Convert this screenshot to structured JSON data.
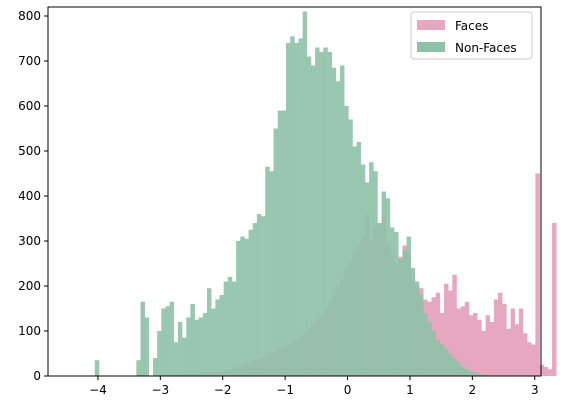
{
  "chart_data": {
    "type": "histogram",
    "title": "",
    "xlabel": "",
    "ylabel": "",
    "xlim": [
      -4.8,
      3.1
    ],
    "ylim": [
      0,
      820
    ],
    "xticks": [
      -4,
      -3,
      -2,
      -1,
      0,
      1,
      2,
      3
    ],
    "yticks": [
      0,
      100,
      200,
      300,
      400,
      500,
      600,
      700,
      800
    ],
    "xtick_labels": [
      "−4",
      "−3",
      "−2",
      "−1",
      "0",
      "1",
      "2",
      "3"
    ],
    "ytick_labels": [
      "0",
      "100",
      "200",
      "300",
      "400",
      "500",
      "600",
      "700",
      "800"
    ],
    "bin_width": 0.0666,
    "legend": {
      "position": "upper right",
      "entries": [
        "Faces",
        "Non-Faces"
      ]
    },
    "series": [
      {
        "name": "Faces",
        "color": "#e6a8bf",
        "bin_start": -3.05,
        "values": [
          1,
          1,
          2,
          2,
          3,
          3,
          4,
          4,
          5,
          5,
          6,
          7,
          8,
          9,
          10,
          12,
          13,
          15,
          18,
          21,
          24,
          27,
          30,
          35,
          38,
          42,
          47,
          52,
          56,
          62,
          66,
          70,
          75,
          80,
          88,
          95,
          105,
          115,
          125,
          135,
          150,
          165,
          180,
          200,
          215,
          240,
          255,
          280,
          290,
          310,
          360,
          300,
          330,
          340,
          355,
          295,
          270,
          250,
          265,
          290,
          275,
          215,
          200,
          195,
          170,
          165,
          175,
          185,
          140,
          205,
          190,
          225,
          150,
          155,
          165,
          135,
          140,
          125,
          100,
          135,
          120,
          170,
          185,
          160,
          105,
          150,
          115,
          150,
          95,
          75,
          70,
          450,
          25,
          20,
          15,
          340
        ]
      },
      {
        "name": "Non-Faces",
        "color": "#8ec1a6",
        "bin_start": -4.05,
        "values": [
          35,
          0,
          0,
          0,
          0,
          0,
          0,
          0,
          0,
          0,
          35,
          165,
          130,
          0,
          40,
          100,
          150,
          155,
          165,
          75,
          120,
          85,
          130,
          160,
          125,
          130,
          140,
          195,
          150,
          170,
          180,
          210,
          220,
          210,
          300,
          310,
          305,
          325,
          340,
          360,
          355,
          465,
          455,
          550,
          590,
          590,
          740,
          755,
          740,
          750,
          810,
          710,
          690,
          730,
          720,
          730,
          720,
          685,
          655,
          690,
          600,
          570,
          510,
          520,
          470,
          430,
          475,
          455,
          340,
          410,
          395,
          330,
          320,
          260,
          280,
          310,
          240,
          210,
          180,
          140,
          120,
          100,
          80,
          70,
          60,
          50,
          40,
          30,
          20,
          15,
          10,
          8,
          5,
          3,
          2,
          1
        ]
      }
    ]
  }
}
